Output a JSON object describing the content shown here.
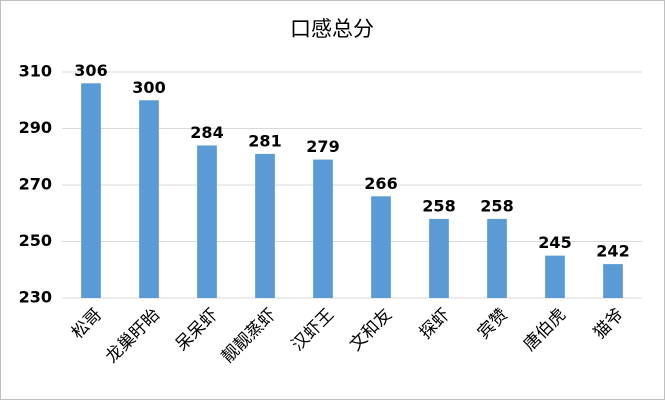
{
  "chart_data": {
    "type": "bar",
    "title": "口感总分",
    "categories": [
      "松哥",
      "龙巢盱眙",
      "呆呆虾",
      "靓靓蒸虾",
      "汉虾王",
      "文和友",
      "探虾",
      "宾赞",
      "唐伯虎",
      "猫爷"
    ],
    "values": [
      306,
      300,
      284,
      281,
      279,
      266,
      258,
      258,
      245,
      242
    ],
    "color": "#5b9bd5",
    "ylim": [
      230,
      310
    ],
    "yticks": [
      230,
      250,
      270,
      290,
      310
    ],
    "grid": true
  }
}
